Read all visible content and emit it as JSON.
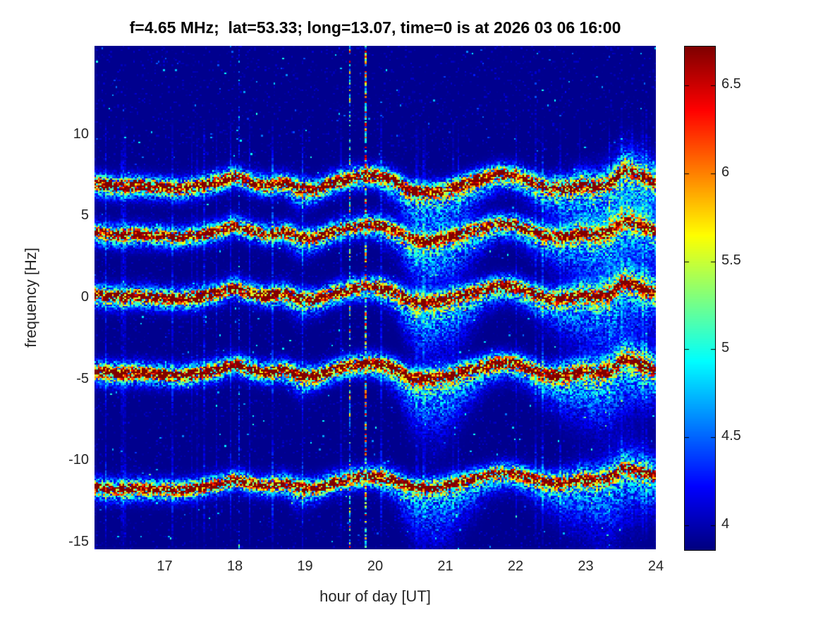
{
  "chart_data": {
    "type": "heatmap",
    "subtype": "doppler-spectrogram",
    "title": "f=4.65 MHz;  lat=53.33; long=13.07, time=0 is at 2026 03 06 16:00",
    "xlabel": "hour of day [UT]",
    "ylabel": "frequency [Hz]",
    "x_range": [
      16,
      24
    ],
    "y_range": [
      -15.45,
      15.45
    ],
    "x_ticks": [
      17,
      18,
      19,
      20,
      21,
      22,
      23,
      24
    ],
    "y_ticks": [
      10,
      5,
      0,
      -5,
      -10,
      -15
    ],
    "grid": false,
    "colormap": "jet",
    "background_value": 3.9,
    "colorbar": {
      "position": "right",
      "ticks": [
        4,
        4.5,
        5,
        5.5,
        6,
        6.5
      ],
      "value_min": 3.86,
      "value_max": 6.72
    },
    "bands": [
      {
        "name": "trace-plus7Hz",
        "center_hz": 7.0,
        "strength": 1.0,
        "wiggle_scale": 1.15,
        "trend_hz_per_hour": 0.0
      },
      {
        "name": "trace-plus4Hz",
        "center_hz": 4.0,
        "strength": 0.9,
        "wiggle_scale": 1.05,
        "trend_hz_per_hour": 0.0
      },
      {
        "name": "trace-0Hz",
        "center_hz": 0.2,
        "strength": 1.0,
        "wiggle_scale": 1.0,
        "trend_hz_per_hour": 0.0
      },
      {
        "name": "trace-minus4p5Hz",
        "center_hz": -4.5,
        "strength": 1.05,
        "wiggle_scale": 1.0,
        "trend_hz_per_hour": 0.0
      },
      {
        "name": "trace-minus11Hz",
        "center_hz": -11.35,
        "strength": 0.9,
        "wiggle_scale": 0.85,
        "trend_hz_per_hour": 0.08
      }
    ],
    "doppler_wiggle": {
      "t": [
        16.0,
        16.3,
        16.6,
        16.9,
        17.2,
        17.5,
        17.8,
        18.0,
        18.2,
        18.45,
        18.7,
        18.95,
        19.15,
        19.4,
        19.65,
        19.9,
        20.1,
        20.3,
        20.5,
        20.75,
        21.0,
        21.25,
        21.5,
        21.75,
        22.0,
        22.2,
        22.45,
        22.7,
        22.95,
        23.15,
        23.35,
        23.55,
        23.75,
        24.0
      ],
      "offset_hz": [
        0.0,
        -0.15,
        -0.1,
        -0.2,
        -0.3,
        -0.15,
        0.1,
        0.4,
        0.1,
        -0.15,
        0.05,
        -0.3,
        -0.35,
        0.05,
        0.3,
        0.45,
        0.4,
        0.1,
        -0.4,
        -0.5,
        -0.35,
        -0.05,
        0.25,
        0.5,
        0.45,
        0.15,
        -0.25,
        -0.3,
        -0.05,
        -0.2,
        0.0,
        0.75,
        0.45,
        0.05
      ]
    },
    "spread_below": {
      "t": [
        16.0,
        16.8,
        17.5,
        18.2,
        18.6,
        18.9,
        19.2,
        19.6,
        20.0,
        20.3,
        20.6,
        20.95,
        21.3,
        21.6,
        21.9,
        22.2,
        22.5,
        22.8,
        23.1,
        23.4,
        23.65,
        23.85,
        24.0
      ],
      "sigma_hz": [
        0.5,
        0.45,
        0.35,
        0.3,
        0.35,
        0.8,
        0.5,
        0.4,
        0.5,
        0.9,
        1.9,
        2.1,
        1.4,
        0.8,
        0.6,
        0.8,
        1.1,
        1.6,
        2.0,
        2.1,
        1.8,
        1.5,
        1.4
      ]
    },
    "spread_above": {
      "t": [
        16.0,
        22.3,
        22.8,
        23.2,
        23.6,
        24.0
      ],
      "sigma_hz": [
        0.15,
        0.18,
        0.45,
        0.6,
        0.85,
        0.7
      ]
    },
    "interference_lines": [
      {
        "time": 18.05,
        "level": "faint"
      },
      {
        "time": 19.63,
        "level": "medium"
      },
      {
        "time": 19.85,
        "level": "bright"
      }
    ]
  },
  "colors": {
    "page_background": "#ffffff",
    "title_text": "#000000",
    "axis_text": "#262626",
    "plot_background_low": "#000090",
    "colorbar_outline": "#000000"
  }
}
